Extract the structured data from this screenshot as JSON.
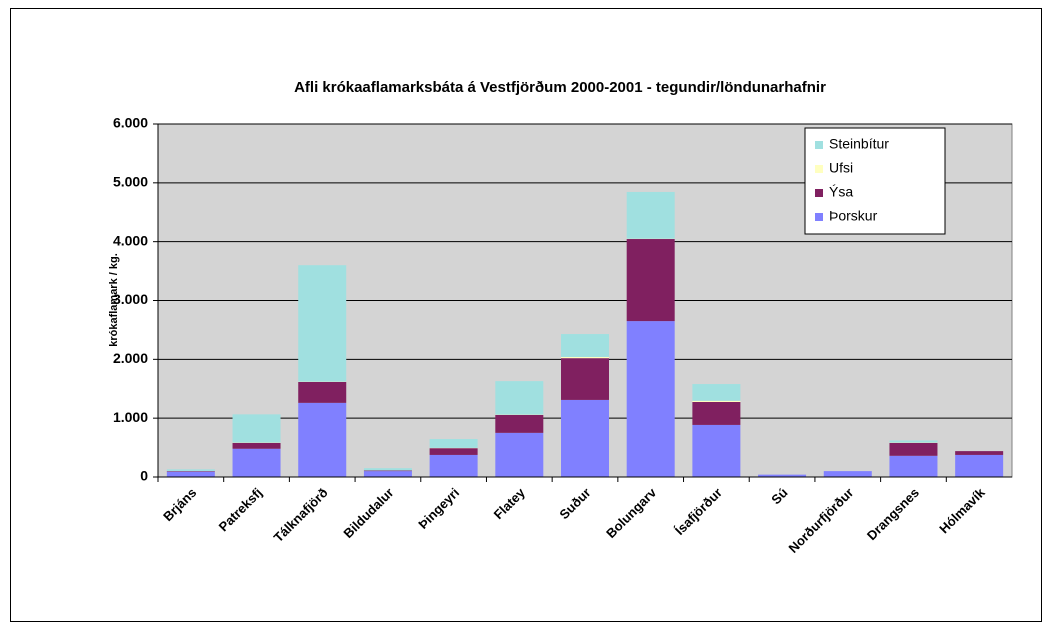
{
  "chart_data": {
    "type": "stacked_bar",
    "title": "Afli krókaaflamarksbáta á Vestfjörðum 2000-2001 - tegundir/löndunarhafnir",
    "y_label": "krókaflamark / kg.",
    "categories": [
      "Brjáns",
      "Patreksfj",
      "Tálknafjörð",
      "Bildudalur",
      "Þingeyri",
      "Flatey",
      "Suður",
      "Bolungarv",
      "Ísafjörður",
      "Sú",
      "Norðurfjörður",
      "Drangsnes",
      "Hólmavík"
    ],
    "series": [
      {
        "name": "Þorskur",
        "color": "#8080ff",
        "values": [
          90,
          480,
          1260,
          100,
          375,
          750,
          1310,
          2650,
          885,
          40,
          100,
          360,
          375
        ]
      },
      {
        "name": "Ýsa",
        "color": "#802060",
        "values": [
          10,
          100,
          355,
          10,
          115,
          305,
          710,
          1395,
          390,
          0,
          0,
          220,
          65
        ]
      },
      {
        "name": "Ufsi",
        "color": "#ffffc0",
        "values": [
          0,
          5,
          5,
          0,
          5,
          5,
          20,
          5,
          20,
          0,
          0,
          5,
          0
        ]
      },
      {
        "name": "Steinbítur",
        "color": "#a0e0e0",
        "values": [
          30,
          480,
          1980,
          40,
          150,
          570,
          390,
          795,
          285,
          0,
          0,
          35,
          0
        ]
      }
    ],
    "ylim": [
      0,
      6000
    ],
    "yticks": [
      {
        "value": 0,
        "label": "0"
      },
      {
        "value": 1000,
        "label": "1.000"
      },
      {
        "value": 2000,
        "label": "2.000"
      },
      {
        "value": 3000,
        "label": "3.000"
      },
      {
        "value": 4000,
        "label": "4.000"
      },
      {
        "value": 5000,
        "label": "5.000"
      },
      {
        "value": 6000,
        "label": "6.000"
      }
    ],
    "grid": true,
    "legend": "upper right"
  }
}
